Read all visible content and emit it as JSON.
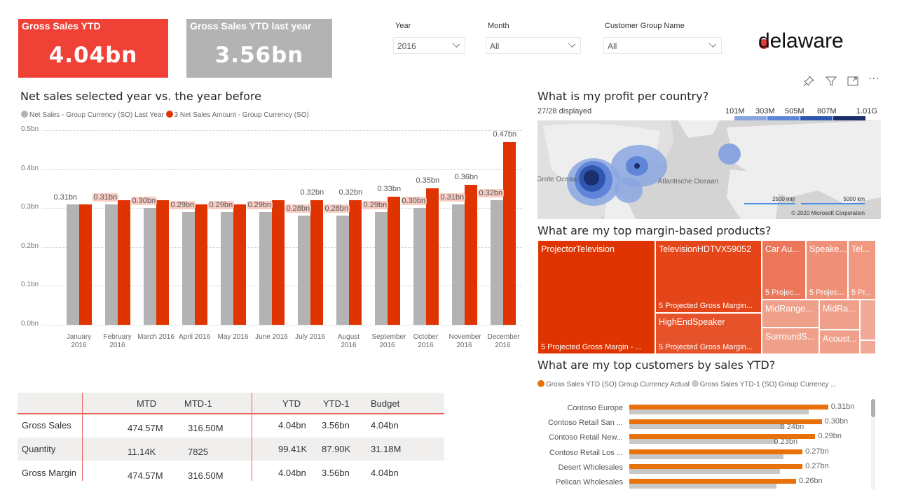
{
  "kpis": [
    {
      "title": "Gross Sales YTD",
      "value": "4.04bn",
      "color": "#ef4136"
    },
    {
      "title": "Gross Sales YTD last year",
      "value": "3.56bn",
      "color": "#b3b3b3"
    }
  ],
  "slicers": [
    {
      "label": "Year",
      "value": "2016"
    },
    {
      "label": "Month",
      "value": "All"
    },
    {
      "label": "Customer Group Name",
      "value": "All"
    }
  ],
  "logo": {
    "text": "delaware",
    "accent": "#e53935"
  },
  "visual_header_icons": [
    "pin-icon",
    "filter-icon",
    "focus-mode-icon",
    "more-options-icon"
  ],
  "net_sales": {
    "title": "Net sales selected year vs. the year before",
    "legend": [
      {
        "label": "Net Sales - Group Currency (SO) Last Year",
        "color": "#b3b3b3"
      },
      {
        "label": "3 Net Sales Amount - Group Currency (SO)",
        "color": "#e03400"
      }
    ]
  },
  "chart_data": [
    {
      "type": "bar",
      "title": "Net sales selected year vs. the year before",
      "xlabel": "",
      "ylabel": "",
      "ylim": [
        0,
        0.5
      ],
      "yticks": [
        "0.0bn",
        "0.1bn",
        "0.2bn",
        "0.3bn",
        "0.4bn",
        "0.5bn"
      ],
      "grid": true,
      "legend_position": "top-left",
      "categories": [
        "January 2016",
        "February 2016",
        "March 2016",
        "April 2016",
        "May 2016",
        "June 2016",
        "July 2016",
        "August 2016",
        "September 2016",
        "October 2016",
        "November 2016",
        "December 2016"
      ],
      "series": [
        {
          "name": "Net Sales - Group Currency (SO) Last Year",
          "color": "#b3b3b3",
          "values": [
            0.31,
            0.31,
            0.3,
            0.29,
            0.29,
            0.29,
            0.28,
            0.28,
            0.29,
            0.3,
            0.31,
            0.32
          ],
          "labels": [
            "0.31bn",
            "0.31bn",
            "0.30bn",
            "0.29bn",
            "0.29bn",
            "0.29bn",
            "0.28bn",
            "0.28bn",
            "0.29bn",
            "0.30bn",
            "0.31bn",
            "0.32bn"
          ]
        },
        {
          "name": "3 Net Sales Amount - Group Currency (SO)",
          "color": "#e03400",
          "values": [
            0.31,
            0.32,
            0.32,
            0.31,
            0.31,
            0.32,
            0.32,
            0.32,
            0.33,
            0.35,
            0.36,
            0.47
          ],
          "labels": [
            "",
            "",
            "",
            "",
            "",
            "",
            "0.32bn",
            "0.32bn",
            "0.33bn",
            "0.35bn",
            "0.36bn",
            "0.47bn"
          ]
        }
      ]
    },
    {
      "type": "bar",
      "orientation": "horizontal",
      "title": "What are my top customers by sales YTD?",
      "legend_position": "top-left",
      "categories": [
        "Contoso Europe",
        "Contoso Retail San ...",
        "Contoso Retail New...",
        "Contoso Retail Los ...",
        "Desert Wholesales",
        "Pelican Wholesales"
      ],
      "series": [
        {
          "name": "Gross Sales YTD (SO) Group Currency Actual",
          "color": "#e8710a",
          "values": [
            0.31,
            0.3,
            0.29,
            0.27,
            0.27,
            0.26
          ],
          "labels": [
            "0.31bn",
            "0.30bn",
            "0.29bn",
            "0.27bn",
            "0.27bn",
            "0.26bn"
          ]
        },
        {
          "name": "Gross Sales YTD-1 (SO) Group Currency ...",
          "color": "#c8c8c8",
          "values": [
            0.28,
            0.24,
            0.23,
            0.24,
            0.235,
            0.23
          ],
          "labels": [
            "",
            "0.24bn",
            "0.23bn",
            "",
            "",
            ""
          ]
        }
      ],
      "xlim": [
        0,
        0.33
      ]
    }
  ],
  "matrix": {
    "headers": [
      "",
      "MTD",
      "MTD-1",
      "YTD",
      "YTD-1",
      "Budget"
    ],
    "rows": [
      {
        "label": "Gross Sales",
        "cells": [
          "474.57M",
          "316.50M",
          "4.04bn",
          "3.56bn",
          "4.04bn"
        ]
      },
      {
        "label": "Quantity",
        "cells": [
          "11.14K",
          "7825",
          "99.41K",
          "87.90K",
          "31.18M"
        ]
      },
      {
        "label": "Gross Margin",
        "cells": [
          "474.57M",
          "316.50M",
          "4.04bn",
          "3.56bn",
          "4.04bn"
        ]
      }
    ]
  },
  "map": {
    "title": "What is my profit per country?",
    "displayed": "27/28 displayed",
    "legend_stops": [
      "101M",
      "303M",
      "505M",
      "807M",
      "1.01G"
    ],
    "legend_colors": [
      "#8aa6e0",
      "#5f85d8",
      "#2f56b0",
      "#1a2f6b"
    ],
    "labels": [
      "Grote Oceaan",
      "Atlantische Oceaan"
    ],
    "scale": [
      "2500 mijl",
      "5000 km"
    ],
    "copyright": "© 2020 Microsoft Corporation"
  },
  "treemap": {
    "title": "What are my top margin-based products?",
    "tiles": [
      {
        "name": "ProjectorTelevision",
        "sub": "5 Projected Gross Margin - ...",
        "color": "#e03400"
      },
      {
        "name": "TelevisionHDTVX59052",
        "sub": "5 Projected Gross Margin...",
        "color": "#e4461a"
      },
      {
        "name": "HighEndSpeaker",
        "sub": "5 Projected Gross Margin...",
        "color": "#e6532b"
      },
      {
        "name": "Car Au...",
        "sub": "5 Projec...",
        "color": "#eb765a"
      },
      {
        "name": "Speake...",
        "sub": "5 Projec...",
        "color": "#ef9178"
      },
      {
        "name": "Tel...",
        "sub": "5 Pr...",
        "color": "#f09880"
      },
      {
        "name": "MidRange...",
        "sub": "",
        "color": "#f0a08a"
      },
      {
        "name": "MidRa...",
        "sub": "",
        "color": "#f0a08a"
      },
      {
        "name": "SurroundS...",
        "sub": "",
        "color": "#f0a08a"
      },
      {
        "name": "Acoust...",
        "sub": "",
        "color": "#f0a08a"
      },
      {
        "name": "",
        "sub": "",
        "color": "#f2a896"
      },
      {
        "name": "",
        "sub": "",
        "color": "#f2a896"
      }
    ]
  }
}
